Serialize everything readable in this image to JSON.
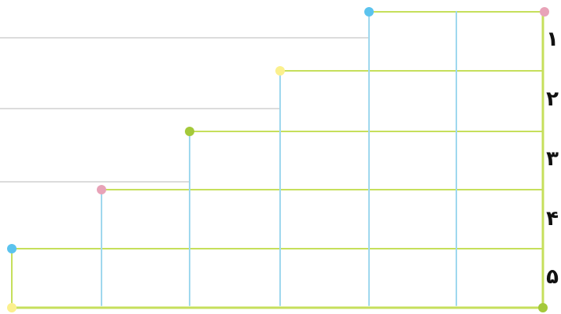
{
  "colors": {
    "grid_gray": "#dcdcdc",
    "green_line": "#c6df5c",
    "blue_line": "#9fd8ee",
    "blue_dot": "#5bc3ee",
    "pink_dot": "#e8a3b8",
    "yellow_dot": "#fbf08d",
    "green_dot": "#a4c93a"
  },
  "row_labels": [
    "۱",
    "۲",
    "۳",
    "۴",
    "۵"
  ],
  "steps": [
    {
      "step": 0,
      "dot_color": "blue_dot"
    },
    {
      "step": 1,
      "dot_color": "pink_dot"
    },
    {
      "step": 2,
      "dot_color": "green_dot"
    },
    {
      "step": 3,
      "dot_color": "yellow_dot"
    },
    {
      "step": 4,
      "dot_color": "blue_dot"
    }
  ],
  "corner_dots": {
    "top_right": "pink_dot",
    "bottom_left": "yellow_dot",
    "bottom_right": "green_dot"
  }
}
